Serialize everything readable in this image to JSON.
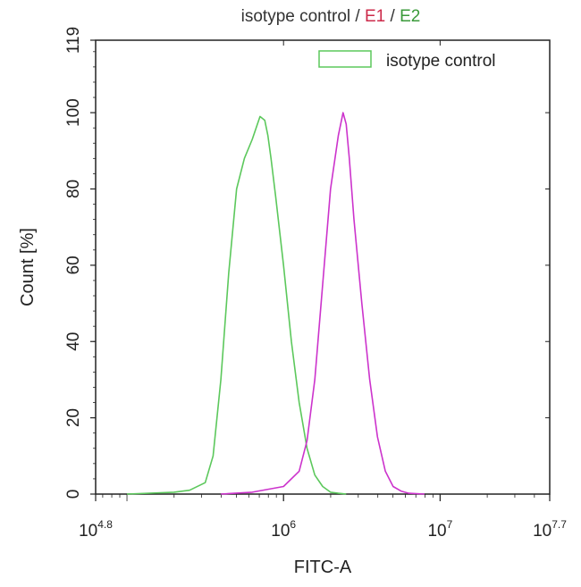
{
  "chart_data": {
    "type": "line",
    "title_parts": [
      {
        "text": "isotype control",
        "color": "#333333"
      },
      {
        "text": " / ",
        "color": "#333333"
      },
      {
        "text": "E1",
        "color": "#cc2a4a"
      },
      {
        "text": " / ",
        "color": "#333333"
      },
      {
        "text": "E2",
        "color": "#3a9a3a"
      }
    ],
    "xlabel": "FITC-A",
    "ylabel": "Count  [%]",
    "xscale": "log",
    "xlim": [
      4.8,
      7.7
    ],
    "ylim": [
      0,
      119
    ],
    "x_ticks": [
      {
        "value": 4.8,
        "base": "10",
        "exp": "4.8"
      },
      {
        "value": 6,
        "base": "10",
        "exp": "6"
      },
      {
        "value": 7,
        "base": "10",
        "exp": "7"
      },
      {
        "value": 7.7,
        "base": "10",
        "exp": "7.7"
      }
    ],
    "y_ticks": [
      "0",
      "20",
      "40",
      "60",
      "80",
      "100",
      "119"
    ],
    "legend": {
      "position": "top-right",
      "entries": [
        {
          "name": "isotype control",
          "color": "#5cc85c"
        }
      ]
    },
    "series": [
      {
        "name": "isotype control",
        "color": "#5cc85c",
        "log10_x": [
          5.0,
          5.3,
          5.4,
          5.5,
          5.55,
          5.6,
          5.65,
          5.7,
          5.75,
          5.8,
          5.85,
          5.88,
          5.9,
          5.92,
          5.95,
          6.0,
          6.05,
          6.1,
          6.15,
          6.2,
          6.25,
          6.3,
          6.35,
          6.4
        ],
        "y": [
          0,
          0.5,
          1,
          3,
          10,
          30,
          58,
          80,
          88,
          93,
          99,
          98,
          94,
          88,
          78,
          60,
          40,
          24,
          12,
          5,
          2,
          0.5,
          0.2,
          0
        ]
      },
      {
        "name": "E1",
        "color": "#cc33cc",
        "log10_x": [
          5.6,
          5.8,
          6.0,
          6.1,
          6.15,
          6.2,
          6.25,
          6.3,
          6.35,
          6.38,
          6.4,
          6.42,
          6.45,
          6.5,
          6.55,
          6.6,
          6.65,
          6.7,
          6.75,
          6.8,
          6.9
        ],
        "y": [
          0,
          0.5,
          2,
          6,
          14,
          30,
          55,
          80,
          94,
          100,
          97,
          88,
          72,
          50,
          30,
          15,
          6,
          2,
          0.8,
          0.2,
          0
        ]
      }
    ]
  }
}
